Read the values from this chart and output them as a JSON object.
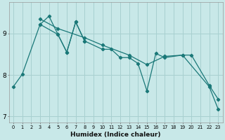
{
  "xlabel": "Humidex (Indice chaleur)",
  "background_color": "#c8e8e8",
  "grid_color": "#a8d0d0",
  "line_color": "#1a7878",
  "xlim": [
    -0.5,
    23.5
  ],
  "ylim": [
    6.85,
    9.75
  ],
  "yticks": [
    7,
    8,
    9
  ],
  "xtick_labels": [
    "0",
    "1",
    "2",
    "3",
    "4",
    "5",
    "6",
    "7",
    "8",
    "9",
    "10",
    "11",
    "12",
    "13",
    "14",
    "15",
    "16",
    "17",
    "18",
    "19",
    "20",
    "21",
    "22",
    "23"
  ],
  "series1_x": [
    0,
    1,
    3,
    5,
    6,
    7,
    8,
    10,
    11,
    12,
    13,
    14,
    15,
    16,
    17,
    19,
    20,
    22,
    23
  ],
  "series1_y": [
    7.72,
    8.02,
    9.22,
    8.98,
    8.55,
    9.28,
    8.82,
    8.62,
    8.62,
    8.42,
    8.42,
    8.28,
    7.62,
    8.52,
    8.42,
    8.48,
    8.48,
    7.75,
    7.42
  ],
  "series2_x": [
    3,
    4,
    5,
    6,
    7,
    8
  ],
  "series2_y": [
    9.22,
    9.42,
    8.98,
    8.55,
    9.28,
    8.82
  ],
  "series3_x": [
    3,
    5,
    8,
    10,
    13,
    15,
    17,
    19,
    22,
    23
  ],
  "series3_y": [
    9.35,
    9.12,
    8.9,
    8.72,
    8.48,
    8.25,
    8.45,
    8.48,
    7.72,
    7.18
  ]
}
